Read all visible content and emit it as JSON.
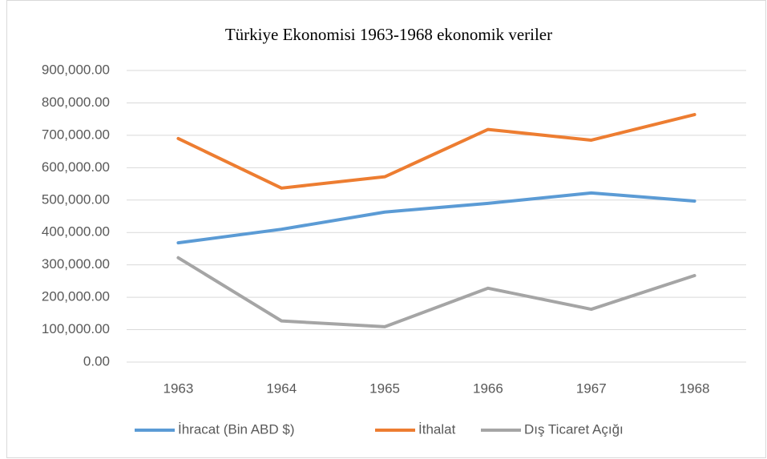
{
  "chart_data": {
    "type": "line",
    "title": "Türkiye Ekonomisi 1963-1968 ekonomik veriler",
    "categories": [
      "1963",
      "1964",
      "1965",
      "1966",
      "1967",
      "1968"
    ],
    "series": [
      {
        "name": "İhracat (Bin ABD $)",
        "color": "#5b9bd5",
        "values": [
          368000,
          410000,
          463000,
          490000,
          522000,
          497000
        ]
      },
      {
        "name": "İthalat",
        "color": "#ed7d31",
        "values": [
          690000,
          537000,
          572000,
          718000,
          685000,
          764000
        ]
      },
      {
        "name": "Dış Ticaret Açığı",
        "color": "#a5a5a5",
        "values": [
          322000,
          127000,
          109000,
          228000,
          163000,
          267000
        ]
      }
    ],
    "ylim": [
      0,
      900000
    ],
    "yticks": [
      {
        "value": 0,
        "label": "0.00"
      },
      {
        "value": 100000,
        "label": "100,000.00"
      },
      {
        "value": 200000,
        "label": "200,000.00"
      },
      {
        "value": 300000,
        "label": "300,000.00"
      },
      {
        "value": 400000,
        "label": "400,000.00"
      },
      {
        "value": 500000,
        "label": "500,000.00"
      },
      {
        "value": 600000,
        "label": "600,000.00"
      },
      {
        "value": 700000,
        "label": "700,000.00"
      },
      {
        "value": 800000,
        "label": "800,000.00"
      },
      {
        "value": 900000,
        "label": "900,000.00"
      }
    ],
    "grid": true,
    "legend": "bottom"
  }
}
